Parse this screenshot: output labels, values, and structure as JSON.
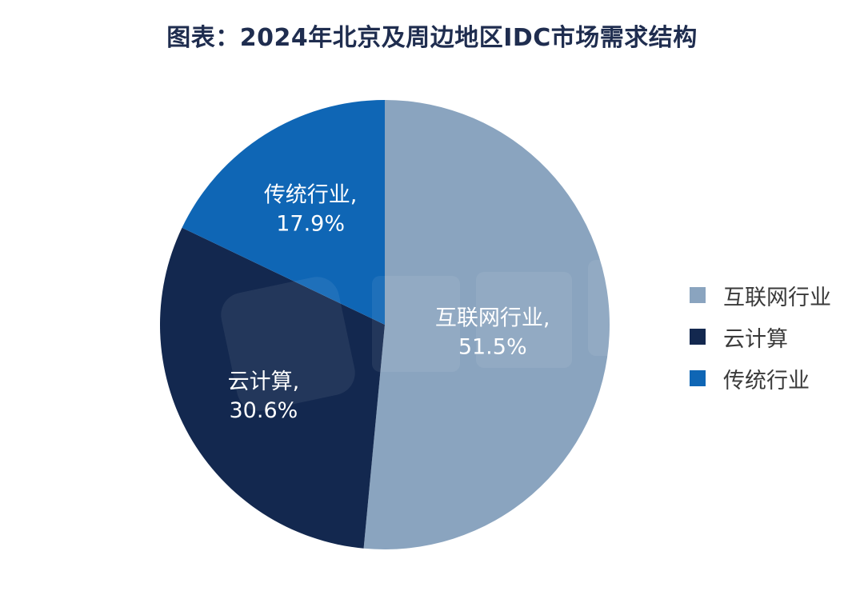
{
  "chart_data": {
    "type": "pie",
    "title": "图表：2024年北京及周边地区IDC市场需求结构",
    "slices": [
      {
        "name": "互联网行业",
        "value": 51.5,
        "value_label": "51.5%",
        "label_line1": "互联网行业,",
        "color": "#8aa4bf"
      },
      {
        "name": "云计算",
        "value": 30.6,
        "value_label": "30.6%",
        "label_line1": "云计算,",
        "color": "#13284f"
      },
      {
        "name": "传统行业",
        "value": 17.9,
        "value_label": "17.9%",
        "label_line1": "传统行业,",
        "color": "#0f66b5"
      }
    ],
    "start_angle": "12 o'clock",
    "direction": "clockwise",
    "legend_position": "right"
  }
}
